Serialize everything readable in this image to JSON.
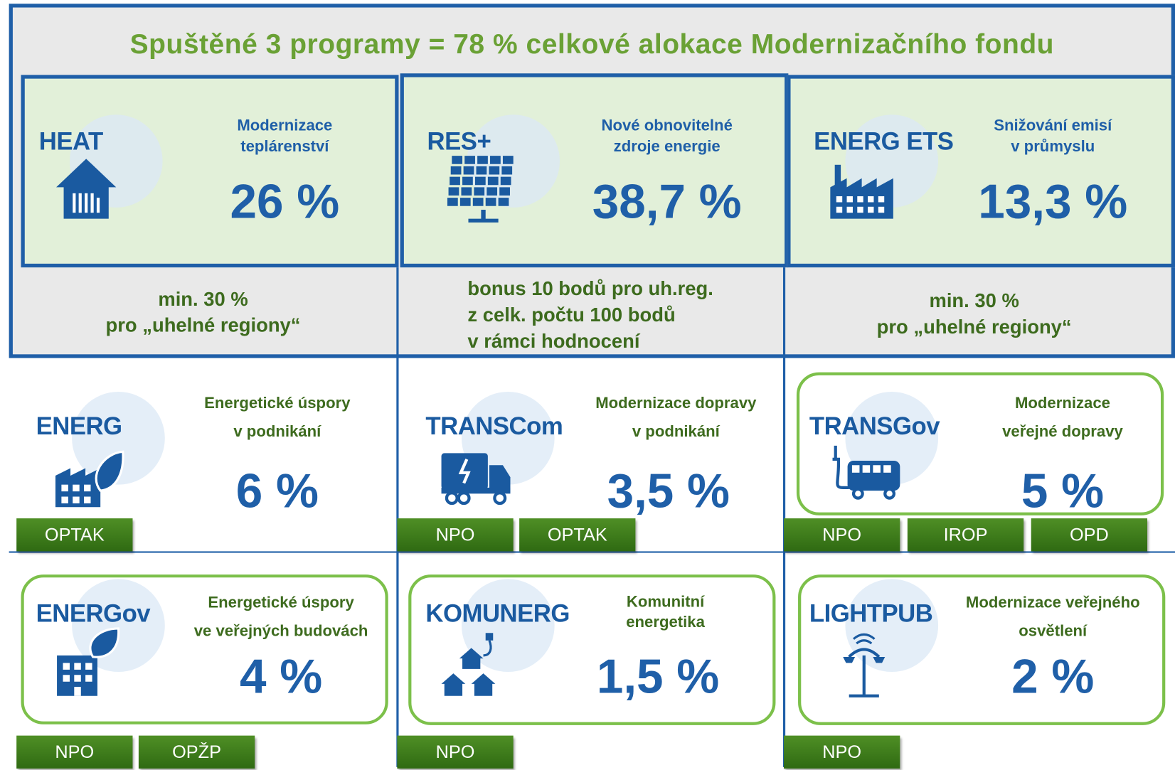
{
  "title": "Spuštěné 3 programy = 78 % celkové alokace Modernizačního fondu",
  "top": [
    {
      "name": "HEAT",
      "desc": [
        "Modernizace",
        "teplárenství"
      ],
      "share": "26 %",
      "note": [
        "min. 30 %",
        "pro „uhelné regiony“"
      ]
    },
    {
      "name": "RES+",
      "desc": [
        "Nové obnovitelné",
        "zdroje energie"
      ],
      "share": "38,7 %",
      "note": [
        "bonus 10 bodů pro uh.reg.",
        "z celk. počtu 100 bodů",
        "v rámci hodnocení"
      ]
    },
    {
      "name": "ENERG ETS",
      "desc": [
        "Snižování emisí",
        "v průmyslu"
      ],
      "share": "13,3 %",
      "note": [
        "min. 30 %",
        "pro „uhelné regiony“"
      ]
    }
  ],
  "bottom": [
    {
      "name": "ENERG",
      "desc": [
        "Energetické úspory",
        "v podnikání"
      ],
      "share": "6 %",
      "tags": [
        "OPTAK"
      ]
    },
    {
      "name": "TRANSCom",
      "desc": [
        "Modernizace dopravy",
        "v podnikání"
      ],
      "share": "3,5 %",
      "tags": [
        "NPO",
        "OPTAK"
      ]
    },
    {
      "name": "TRANSGov",
      "desc": [
        "Modernizace",
        "veřejné dopravy"
      ],
      "share": "5 %",
      "tags": [
        "NPO",
        "IROP",
        "OPD"
      ]
    },
    {
      "name": "ENERGov",
      "desc": [
        "Energetické úspory",
        "ve veřejných budovách"
      ],
      "share": "4 %",
      "tags": [
        "NPO",
        "OPŽP"
      ]
    },
    {
      "name": "KOMUNERG",
      "desc": [
        "Komunitní",
        "energetika"
      ],
      "share": "1,5 %",
      "tags": [
        "NPO"
      ]
    },
    {
      "name": "LIGHTPUB",
      "desc": [
        "Modernizace veřejného",
        "osvětlení"
      ],
      "share": "2 %",
      "tags": [
        "NPO"
      ]
    }
  ]
}
